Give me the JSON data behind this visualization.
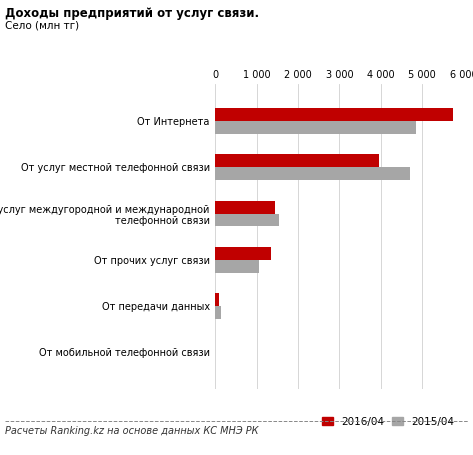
{
  "title_line1": "Доходы предприятий от услуг связи.",
  "title_line2": "Село (млн тг)",
  "categories": [
    "От мобильной телефонной связи",
    "От передачи данных",
    "От прочих услуг связи",
    "От услуг междугородной и международной\nтелефонной связи",
    "От услуг местной телефонной связи",
    "От Интернета"
  ],
  "values_2016": [
    0,
    100,
    1350,
    1450,
    3950,
    5750
  ],
  "values_2015": [
    0,
    130,
    1050,
    1550,
    4700,
    4850
  ],
  "color_2016": "#c00000",
  "color_2015": "#a6a6a6",
  "xlim": [
    0,
    6000
  ],
  "xticks": [
    0,
    1000,
    2000,
    3000,
    4000,
    5000,
    6000
  ],
  "xtick_labels": [
    "0",
    "1 000",
    "2 000",
    "3 000",
    "4 000",
    "5 000",
    "6 000"
  ],
  "legend_2016": "2016/04",
  "legend_2015": "2015/04",
  "footnote": "Расчеты Ranking.kz на основе данных КС МНЭ РК",
  "bar_height": 0.28,
  "background_color": "#ffffff"
}
